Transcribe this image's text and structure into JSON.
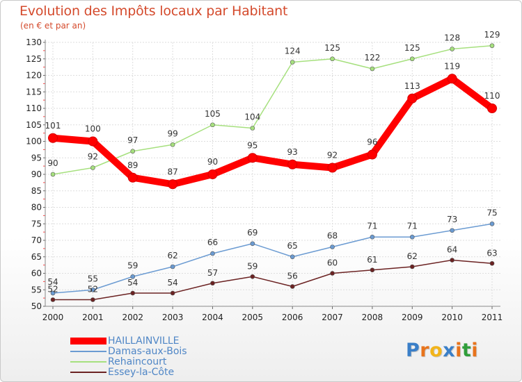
{
  "chart_data": {
    "type": "line",
    "title": "Evolution des Impôts locaux par Habitant",
    "subtitle": "(en € et par an)",
    "x": [
      "2000",
      "2001",
      "2002",
      "2003",
      "2004",
      "2005",
      "2006",
      "2007",
      "2008",
      "2009",
      "2010",
      "2011"
    ],
    "yticks": [
      50,
      55,
      60,
      65,
      70,
      75,
      80,
      85,
      90,
      95,
      100,
      105,
      110,
      115,
      120,
      125,
      130
    ],
    "ylim": [
      50,
      130
    ],
    "grid": true,
    "legend_position": "bottom-left",
    "series": [
      {
        "name": "HAILLAINVILLE",
        "color": "#ff0000",
        "values": [
          101,
          100,
          89,
          87,
          90,
          95,
          93,
          92,
          96,
          113,
          119,
          110
        ]
      },
      {
        "name": "Damas-aux-Bois",
        "color": "#6b9bd2",
        "values": [
          54,
          55,
          59,
          62,
          66,
          69,
          65,
          68,
          71,
          71,
          73,
          75
        ]
      },
      {
        "name": "Rehaincourt",
        "color": "#a6e07e",
        "values": [
          90,
          92,
          97,
          99,
          105,
          104,
          124,
          125,
          122,
          125,
          128,
          129
        ]
      },
      {
        "name": "Essey-la-Côte",
        "color": "#6b2222",
        "values": [
          52,
          52,
          54,
          54,
          57,
          59,
          56,
          60,
          61,
          62,
          64,
          63
        ]
      }
    ]
  },
  "logo": {
    "letters": [
      "P",
      "r",
      "o",
      "x",
      "i",
      "t",
      "i"
    ],
    "colors": [
      "#3a7fc8",
      "#e8741c",
      "#f2b41a",
      "#3a7fc8",
      "#e8741c",
      "#2f9e3a",
      "#e8741c"
    ]
  }
}
